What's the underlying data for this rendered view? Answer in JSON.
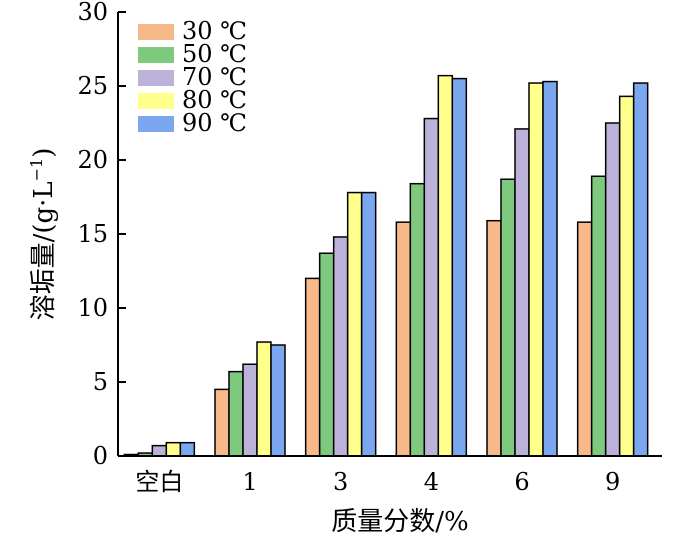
{
  "chart_data": {
    "type": "bar",
    "categories": [
      "空白",
      "1",
      "3",
      "4",
      "6",
      "9"
    ],
    "series": [
      {
        "name": "30 ℃",
        "color": "#f8b98a",
        "values": [
          0.1,
          4.5,
          12.0,
          15.8,
          15.9,
          15.8
        ]
      },
      {
        "name": "50 ℃",
        "color": "#7fc97f",
        "values": [
          0.2,
          5.7,
          13.7,
          18.4,
          18.7,
          18.9
        ]
      },
      {
        "name": "70 ℃",
        "color": "#bcb1d9",
        "values": [
          0.7,
          6.2,
          14.8,
          22.8,
          22.1,
          22.5
        ]
      },
      {
        "name": "80 ℃",
        "color": "#ffff8c",
        "values": [
          0.9,
          7.7,
          17.8,
          25.7,
          25.2,
          24.3
        ]
      },
      {
        "name": "90 ℃",
        "color": "#7ba7f0",
        "values": [
          0.9,
          7.5,
          17.8,
          25.5,
          25.3,
          25.2
        ]
      }
    ],
    "xlabel": "质量分数/%",
    "ylabel_main": "溶垢量/(g·L",
    "ylabel_sup": "−1",
    "ylabel_tail": ")",
    "ylim": [
      0,
      30
    ],
    "yticks": [
      0,
      5,
      10,
      15,
      20,
      25,
      30
    ],
    "grid": false,
    "legend_position": "top-left"
  }
}
